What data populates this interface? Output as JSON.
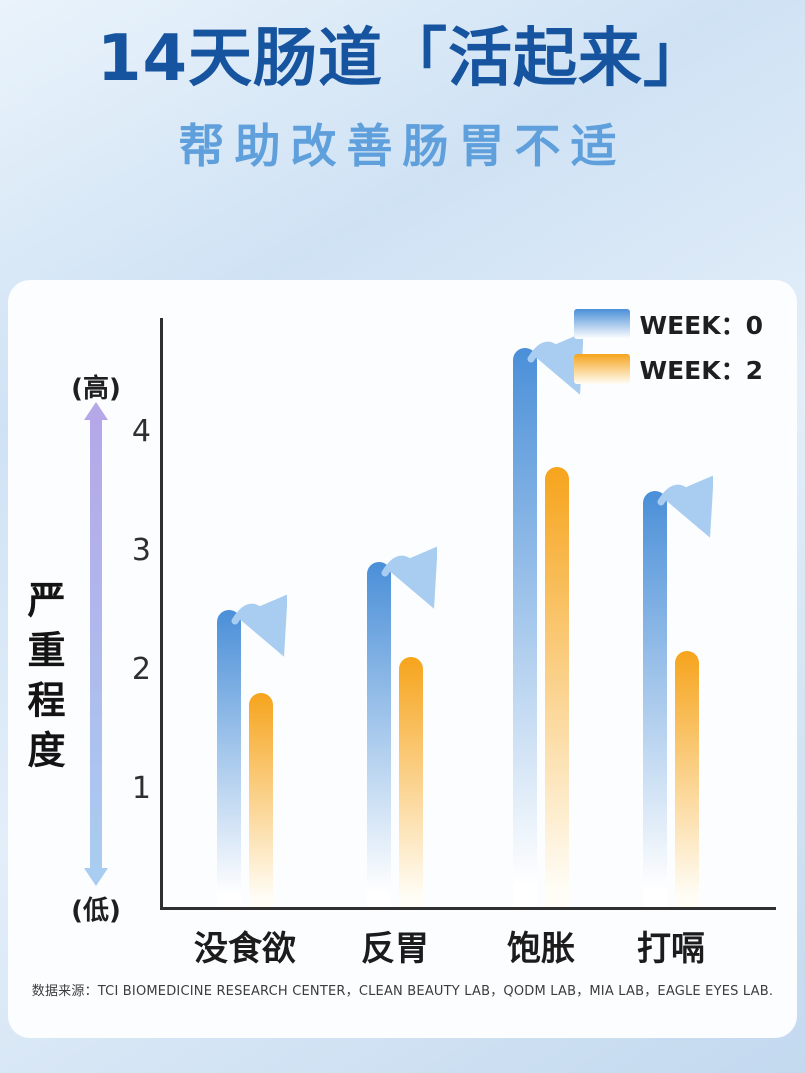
{
  "page": {
    "title": "14天肠道「活起来」",
    "subtitle": "帮助改善肠胃不适",
    "source_note": "数据来源：TCI BIOMEDICINE RESEARCH CENTER，CLEAN BEAUTY LAB，QODM LAB，MIA LAB，EAGLE EYES LAB."
  },
  "colors": {
    "title": "#17549f",
    "subtitle": "#5fa0dc",
    "card_bg": "#fcfdff",
    "page_bg": "#cfe2f4"
  },
  "chart_data": {
    "type": "bar",
    "title": "",
    "categories": [
      "没食欲",
      "反胃",
      "饱胀",
      "打嗝"
    ],
    "series": [
      {
        "name": "WEEK：0",
        "values": [
          2.5,
          2.9,
          4.7,
          3.5
        ],
        "color_top": "#4a8fd8",
        "color_bottom": "#ffffff"
      },
      {
        "name": "WEEK：2",
        "values": [
          1.8,
          2.1,
          3.7,
          2.15
        ],
        "color_top": "#f6a41c",
        "color_bottom": "#fffdf6"
      }
    ],
    "xlabel": "",
    "ylabel": "严重程度",
    "y_high_label": "(高)",
    "y_low_label": "(低)",
    "yticks": [
      1,
      2,
      3,
      4
    ],
    "ylim": [
      0,
      5
    ],
    "grid": false,
    "legend_position": "top-right",
    "annotations": "curved light-blue arrows mark the decrease of each symptom from WEEK 0 to WEEK 2",
    "decrease_arrow_color": "#a9cdf1",
    "axis_color": "#2f2f2f",
    "severity_arrow_gradient": [
      "#b5a7e8",
      "#a9ccf1"
    ]
  }
}
